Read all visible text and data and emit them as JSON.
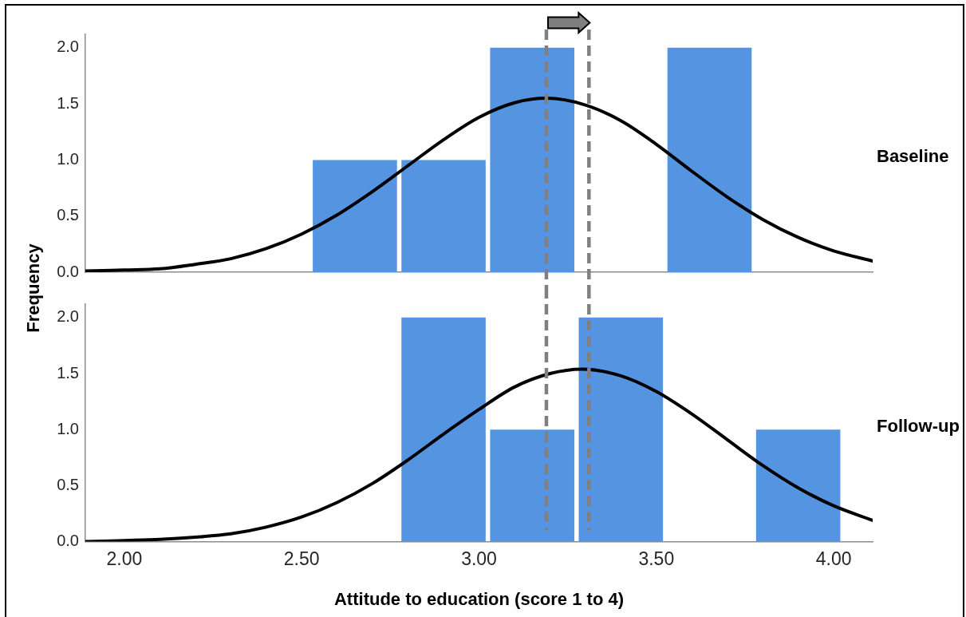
{
  "chart_data": [
    {
      "type": "histogram",
      "title": "Baseline",
      "ylabel": "Frequency",
      "bins": [
        2.525,
        2.775,
        3.025,
        3.275,
        3.525,
        3.775
      ],
      "series": [
        {
          "color": "#5594e1",
          "values": [
            1,
            1,
            2,
            0,
            2
          ]
        },
        {
          "type": "line",
          "color": "#000000",
          "x": [
            1.89,
            2.0,
            2.1,
            2.2,
            2.3,
            2.4,
            2.5,
            2.6,
            2.7,
            2.8,
            2.9,
            3.0,
            3.1,
            3.19,
            3.3,
            3.4,
            3.5,
            3.6,
            3.7,
            3.8,
            3.9,
            4.0,
            4.11
          ],
          "values": [
            0.01,
            0.02,
            0.03,
            0.07,
            0.12,
            0.21,
            0.34,
            0.51,
            0.72,
            0.95,
            1.18,
            1.38,
            1.51,
            1.55,
            1.49,
            1.35,
            1.14,
            0.9,
            0.67,
            0.47,
            0.31,
            0.19,
            0.1
          ]
        }
      ],
      "xlim": [
        1.89,
        4.11
      ],
      "ylim": [
        0,
        2.12
      ],
      "yticks": [
        {
          "value": 0,
          "label": "0.0"
        },
        {
          "value": 0.5,
          "label": "0.5"
        },
        {
          "value": 1,
          "label": "1.0"
        },
        {
          "value": 1.5,
          "label": "1.5"
        },
        {
          "value": 2,
          "label": "2.0"
        }
      ],
      "tick_labels": "y",
      "ref_lines": [
        {
          "axis": "x",
          "value": 3.19,
          "color": "#808080",
          "line_style": "dashed"
        },
        {
          "axis": "x",
          "value": 3.31,
          "color": "#808080",
          "line_style": "dashed"
        }
      ]
    },
    {
      "type": "histogram",
      "title": "Follow-up",
      "xlabel": "Attitude to education (score 1 to 4)",
      "bins": [
        2.775,
        3.025,
        3.275,
        3.525,
        3.775,
        4.025
      ],
      "series": [
        {
          "color": "#5594e1",
          "values": [
            2,
            1,
            2,
            0,
            1
          ]
        },
        {
          "type": "line",
          "color": "#000000",
          "x": [
            1.89,
            2.0,
            2.1,
            2.2,
            2.3,
            2.4,
            2.5,
            2.6,
            2.7,
            2.8,
            2.9,
            3.0,
            3.1,
            3.2,
            3.29,
            3.4,
            3.5,
            3.6,
            3.7,
            3.8,
            3.9,
            4.0,
            4.11
          ],
          "values": [
            0,
            0.01,
            0.02,
            0.04,
            0.07,
            0.13,
            0.22,
            0.35,
            0.52,
            0.73,
            0.96,
            1.18,
            1.38,
            1.5,
            1.54,
            1.48,
            1.34,
            1.14,
            0.91,
            0.68,
            0.48,
            0.32,
            0.19
          ]
        }
      ],
      "xlim": [
        1.89,
        4.11
      ],
      "ylim": [
        0,
        2.12
      ],
      "xticks": [
        {
          "value": 2,
          "label": "2.00"
        },
        {
          "value": 2.5,
          "label": "2.50"
        },
        {
          "value": 3,
          "label": "3.00"
        },
        {
          "value": 3.5,
          "label": "3.50"
        },
        {
          "value": 4,
          "label": "4.00"
        }
      ],
      "yticks": [
        {
          "value": 0,
          "label": "0.0"
        },
        {
          "value": 0.5,
          "label": "0.5"
        },
        {
          "value": 1,
          "label": "1.0"
        },
        {
          "value": 1.5,
          "label": "1.5"
        },
        {
          "value": 2,
          "label": "2.0"
        }
      ],
      "ref_lines": [
        {
          "axis": "x",
          "value": 3.19,
          "color": "#808080",
          "line_style": "dashed"
        },
        {
          "axis": "x",
          "value": 3.31,
          "color": "#808080",
          "line_style": "dashed"
        }
      ]
    }
  ]
}
